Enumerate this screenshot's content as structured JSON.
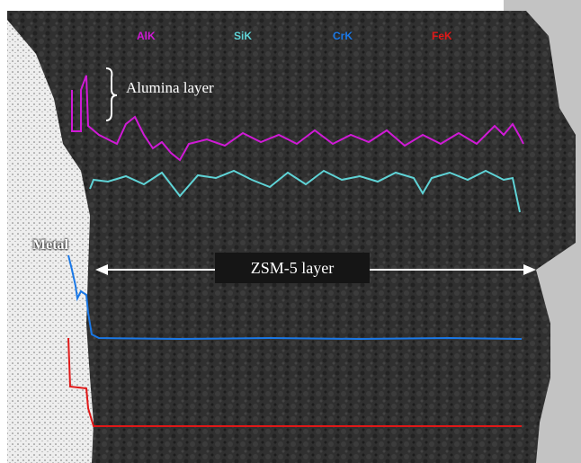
{
  "legend": [
    {
      "label": "AlK",
      "color": "#d01ad6"
    },
    {
      "label": "SiK",
      "color": "#5fd3d6"
    },
    {
      "label": "CrK",
      "color": "#1a78e6"
    },
    {
      "label": "FeK",
      "color": "#e01818"
    }
  ],
  "annotations": {
    "alumina_layer": "Alumina layer",
    "metal": "Metal",
    "zsm5_layer": "ZSM-5 layer"
  },
  "colors": {
    "background": "#2a2a2a",
    "metal_region": "#e8e8e8",
    "right_margin": "#c3c3c3",
    "arrow": "#ffffff"
  }
}
